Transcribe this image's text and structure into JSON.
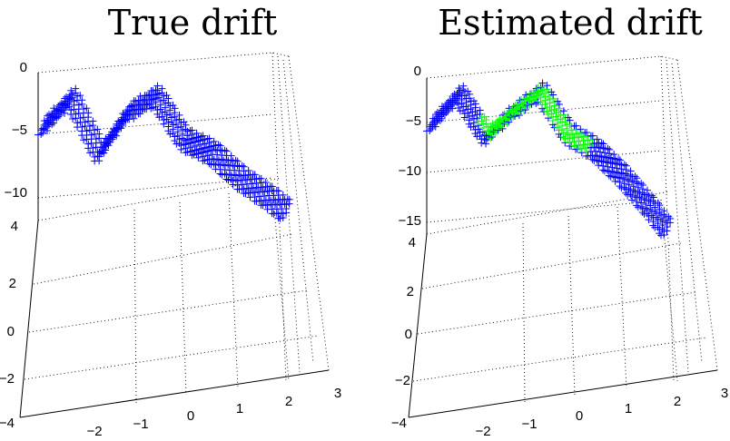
{
  "chart_data": [
    {
      "type": "3d-scatter",
      "title": "True drift",
      "marker": "+",
      "colors": {
        "points": "#0000ff"
      },
      "z_ticks": [
        "0",
        "−5",
        "−10"
      ],
      "y_ticks": [
        "4",
        "2",
        "0",
        "−2",
        "−4"
      ],
      "x_ticks": [
        "−2",
        "−1",
        "0",
        "1",
        "2",
        "3"
      ],
      "xlim": [
        -2,
        3
      ],
      "ylim": [
        -4,
        4
      ],
      "zlim": [
        -11,
        0
      ],
      "grid": true,
      "surface": {
        "description": "drift surface z = f(x) sampled over x in [-2, 2.3], y in [-0.6, 0.6]",
        "profile_x": [
          -2.0,
          -1.5,
          -1.0,
          -0.5,
          0.0,
          0.5,
          1.0,
          1.5,
          2.0,
          2.3
        ],
        "profile_z": [
          -4.5,
          -2.0,
          -6.5,
          -3.0,
          -1.5,
          -5.0,
          -6.0,
          -8.0,
          -9.5,
          -10.5
        ]
      }
    },
    {
      "type": "3d-scatter",
      "title": "Estimated drift",
      "marker": "+",
      "colors": {
        "points": "#0000ff",
        "highlight": "#00ff00"
      },
      "z_ticks": [
        "0",
        "−5",
        "−10",
        "−15"
      ],
      "y_ticks": [
        "4",
        "2",
        "0",
        "−2",
        "−4"
      ],
      "x_ticks": [
        "−2",
        "−1",
        "0",
        "1",
        "2",
        "3"
      ],
      "xlim": [
        -2,
        3
      ],
      "ylim": [
        -4,
        4
      ],
      "zlim": [
        -16,
        0
      ],
      "grid": true,
      "surface": {
        "description": "estimated drift surface with green (highlighted) region near the central bump",
        "profile_x": [
          -2.0,
          -1.5,
          -1.0,
          -0.5,
          0.0,
          0.5,
          1.0,
          1.5,
          2.0,
          2.3
        ],
        "profile_z": [
          -4.5,
          -1.5,
          -5.5,
          -3.0,
          -1.0,
          -5.0,
          -6.5,
          -9.0,
          -12.0,
          -14.0
        ]
      }
    }
  ]
}
